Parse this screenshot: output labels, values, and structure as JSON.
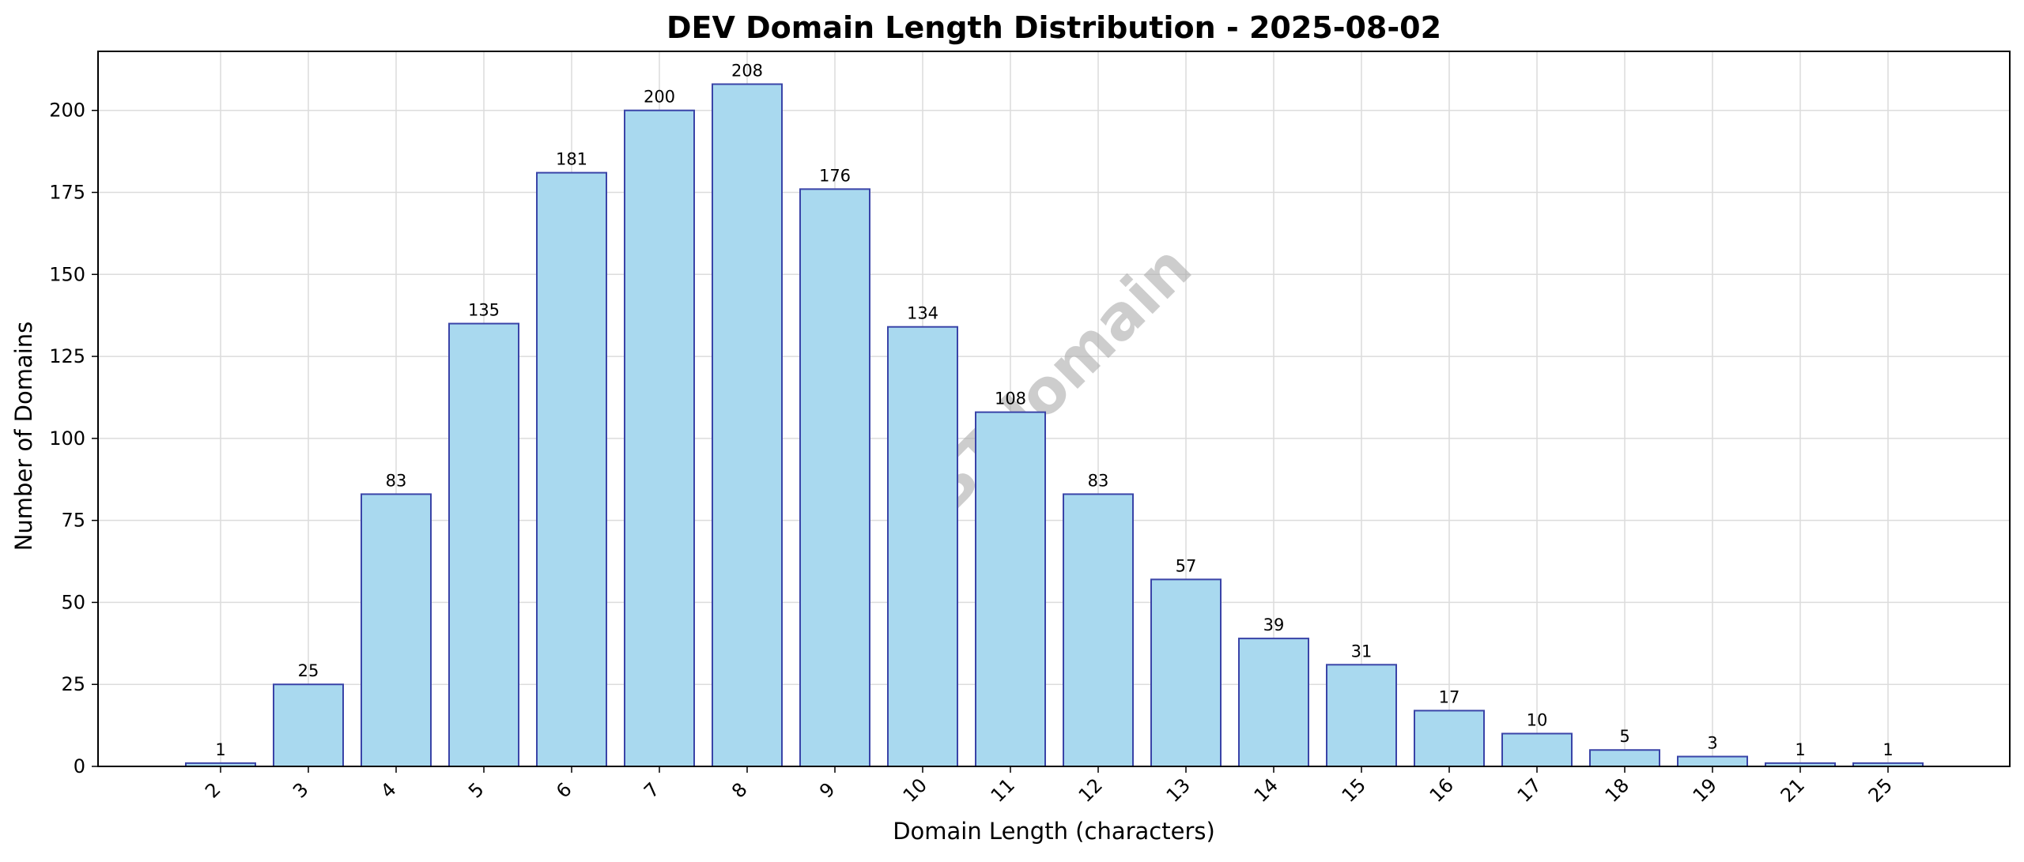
{
  "chart_data": {
    "type": "bar",
    "title": "DEV Domain Length Distribution - 2025-08-02",
    "xlabel": "Domain Length (characters)",
    "ylabel": "Number of Domains",
    "categories": [
      "2",
      "3",
      "4",
      "5",
      "6",
      "7",
      "8",
      "9",
      "10",
      "11",
      "12",
      "13",
      "14",
      "15",
      "16",
      "17",
      "18",
      "19",
      "21",
      "25"
    ],
    "values": [
      1,
      25,
      83,
      135,
      181,
      200,
      208,
      176,
      134,
      108,
      83,
      57,
      39,
      31,
      17,
      10,
      5,
      3,
      1,
      1
    ],
    "ylim": [
      0,
      218
    ],
    "yticks": [
      0,
      25,
      50,
      75,
      100,
      125,
      150,
      175,
      200
    ],
    "grid": true,
    "show_value_labels": true,
    "watermark": "ABTdomain",
    "colors": {
      "bar_fill": "#a9d9ef",
      "bar_edge": "#3a44a8",
      "grid": "#dcdcdc",
      "axis": "#000000"
    }
  }
}
